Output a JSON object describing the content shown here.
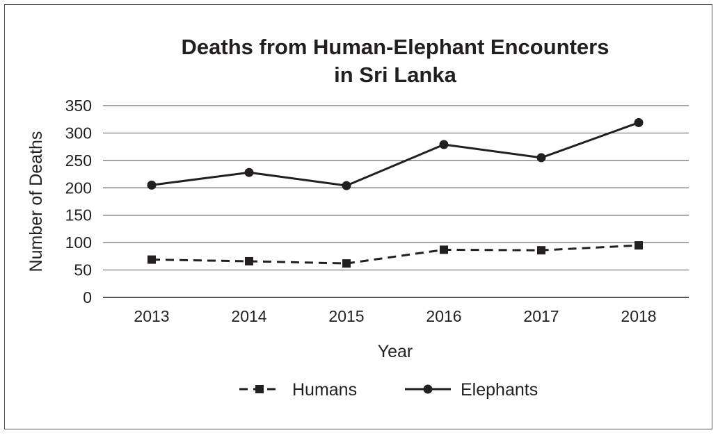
{
  "chart_data": {
    "type": "line",
    "title_lines": [
      "Deaths from Human-Elephant Encounters",
      "in Sri Lanka"
    ],
    "xlabel": "Year",
    "ylabel": "Number of Deaths",
    "categories": [
      "2013",
      "2014",
      "2015",
      "2016",
      "2017",
      "2018"
    ],
    "yticks": [
      "0",
      "50",
      "100",
      "150",
      "200",
      "250",
      "300",
      "350"
    ],
    "ylim": [
      0,
      350
    ],
    "grid": "horizontal",
    "legend_position": "bottom-center",
    "series": [
      {
        "name": "Humans",
        "line_style": "dashed",
        "marker": "square",
        "color": "#231f20",
        "values": [
          69,
          66,
          62,
          87,
          86,
          95
        ]
      },
      {
        "name": "Elephants",
        "line_style": "solid",
        "marker": "circle",
        "color": "#231f20",
        "values": [
          205,
          228,
          204,
          279,
          255,
          319
        ]
      }
    ]
  }
}
